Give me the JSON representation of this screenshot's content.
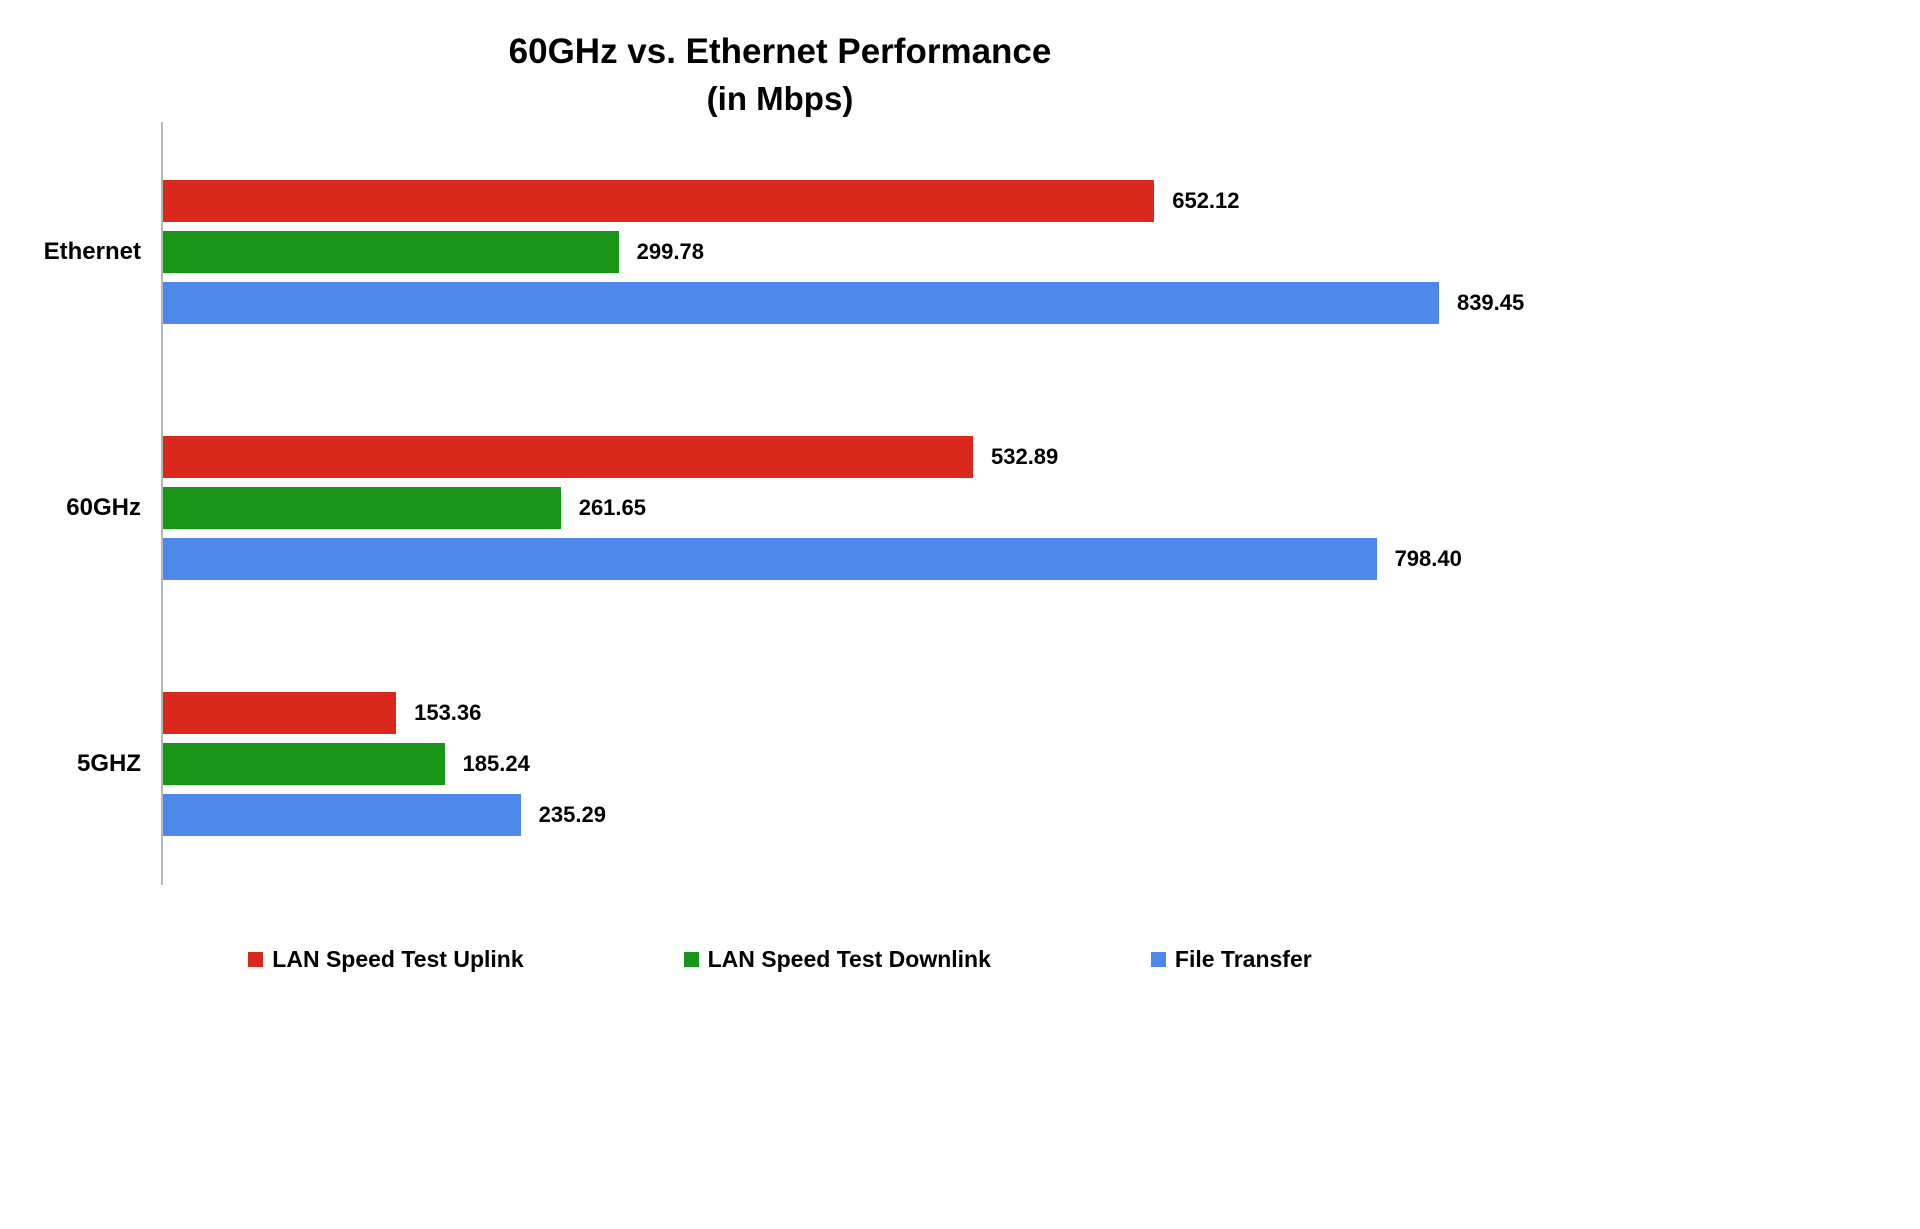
{
  "chart_data": {
    "type": "bar",
    "orientation": "horizontal",
    "title": "60GHz vs. Ethernet Performance",
    "subtitle": "(in Mbps)",
    "unit": "Mbps",
    "categories": [
      "Ethernet",
      "60GHz",
      "5GHZ"
    ],
    "series": [
      {
        "name": "LAN Speed Test Uplink",
        "color": "#da291c",
        "values": [
          652.12,
          532.89,
          153.36
        ],
        "labels": [
          "652.12",
          "532.89",
          "153.36"
        ]
      },
      {
        "name": "LAN Speed Test Downlink",
        "color": "#189618",
        "values": [
          299.78,
          261.65,
          185.24
        ],
        "labels": [
          "299.78",
          "261.65",
          "185.24"
        ]
      },
      {
        "name": "File Transfer",
        "color": "#4d87ea",
        "values": [
          839.45,
          798.4,
          235.29
        ],
        "labels": [
          "839.45",
          "798.40",
          "235.29"
        ]
      }
    ],
    "xlim": [
      0,
      880
    ],
    "grid": false,
    "legend_position": "bottom"
  }
}
